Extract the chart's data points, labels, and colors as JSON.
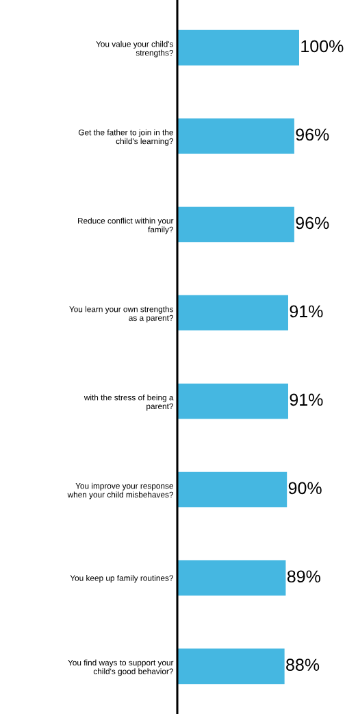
{
  "chart_data": {
    "type": "bar",
    "orientation": "horizontal",
    "categories": [
      "You value your child's\nstrengths?",
      "Get the father to join in the\nchild's learning?",
      "Reduce conflict within your\nfamily?",
      "You learn your own strengths\nas a parent?",
      "with the stress of being a\nparent?",
      "You improve your response\nwhen your child misbehaves?",
      "You keep up family routines?",
      "You find ways to support your\nchild's good behavior?"
    ],
    "values": [
      100,
      96,
      96,
      91,
      91,
      90,
      89,
      88
    ],
    "value_labels": [
      "100%",
      "96%",
      "96%",
      "91%",
      "91%",
      "90%",
      "89%",
      "88%"
    ],
    "color": "#45b7e1",
    "grid": false,
    "legend": false
  }
}
